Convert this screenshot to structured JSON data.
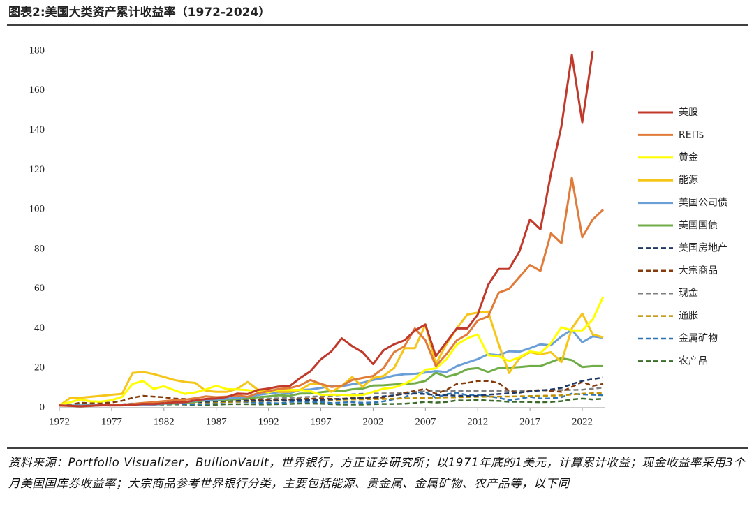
{
  "chart_data": {
    "type": "line",
    "title": "图表2:美国大类资产累计收益率（1972-2024）",
    "source": "资料来源：Portfolio Visualizer，BullionVault，世界银行，方正证券研究所；以1971年底的1美元，计算累计收益；现金收益率采用3个月美国国库券收益率；大宗商品参考世界银行分类，主要包括能源、贵金属、金属矿物、农产品等，以下同",
    "x": [
      1972,
      1973,
      1974,
      1975,
      1976,
      1977,
      1978,
      1979,
      1980,
      1981,
      1982,
      1983,
      1984,
      1985,
      1986,
      1987,
      1988,
      1989,
      1990,
      1991,
      1992,
      1993,
      1994,
      1995,
      1996,
      1997,
      1998,
      1999,
      2000,
      2001,
      2002,
      2003,
      2004,
      2005,
      2006,
      2007,
      2008,
      2009,
      2010,
      2011,
      2012,
      2013,
      2014,
      2015,
      2016,
      2017,
      2018,
      2019,
      2020,
      2021,
      2022,
      2023,
      2024
    ],
    "xlim": [
      1972,
      2024
    ],
    "xticks": [
      1972,
      1977,
      1982,
      1987,
      1992,
      1997,
      2002,
      2007,
      2012,
      2017,
      2022
    ],
    "ylim": [
      0,
      180
    ],
    "yticks": [
      0,
      20,
      40,
      60,
      80,
      100,
      120,
      140,
      160,
      180
    ],
    "legend": "right",
    "series": [
      {
        "name": "美股",
        "color": "#C0392B",
        "values": [
          1.2,
          1.0,
          0.75,
          1.0,
          1.25,
          1.15,
          1.2,
          1.45,
          1.9,
          1.8,
          2.2,
          2.7,
          2.8,
          3.7,
          4.4,
          4.6,
          5.4,
          7.1,
          6.9,
          9.0,
          9.7,
          10.7,
          10.8,
          14.9,
          18.3,
          24.4,
          28.4,
          35,
          31,
          28,
          22,
          29,
          32,
          34,
          39,
          42,
          26,
          33,
          40,
          40,
          47,
          62,
          70,
          70,
          79,
          95,
          90,
          118,
          142,
          178,
          144,
          180,
          null
        ]
      },
      {
        "name": "REITs",
        "color": "#E07B39",
        "values": [
          1.1,
          0.9,
          0.7,
          0.9,
          1.2,
          1.4,
          1.5,
          1.9,
          2.4,
          2.8,
          3.3,
          3.8,
          4.0,
          4.8,
          5.7,
          5.3,
          5.6,
          6.2,
          5.5,
          7.4,
          8.3,
          9.5,
          9.9,
          11.2,
          14.0,
          12.0,
          10.5,
          11.0,
          14,
          15,
          16,
          20,
          28,
          31,
          40,
          34,
          21,
          27,
          34,
          37,
          44,
          46,
          58,
          60,
          66,
          72,
          69,
          88,
          83,
          116,
          86,
          95,
          100
        ]
      },
      {
        "name": "黄金",
        "color": "#FFFF00",
        "values": [
          1.5,
          2.7,
          4.2,
          3.2,
          3.1,
          3.8,
          5.5,
          12,
          13.5,
          9.5,
          10.8,
          8.8,
          7.0,
          7.7,
          9.2,
          11.1,
          9.4,
          9.2,
          8.9,
          8.1,
          7.7,
          9.1,
          9.0,
          9.0,
          8.3,
          6.5,
          6.6,
          6.5,
          6.3,
          6.4,
          8.0,
          9.6,
          10.2,
          12,
          14.7,
          19.2,
          19.8,
          24.4,
          31.8,
          35,
          37,
          26.5,
          26,
          23.5,
          25.5,
          28.4,
          27.6,
          32.5,
          40.6,
          39,
          39,
          44.5,
          56
        ]
      },
      {
        "name": "能源",
        "color": "#F5C518",
        "values": [
          1,
          4.8,
          5,
          5.5,
          6,
          6.5,
          7,
          17.5,
          18,
          17,
          15.5,
          14,
          13,
          12.5,
          8.5,
          8,
          8,
          9.5,
          13,
          9,
          9,
          8,
          8,
          9,
          12,
          12,
          8,
          11,
          15.5,
          10.5,
          15,
          16,
          20,
          30,
          30,
          42,
          22,
          32,
          40,
          47,
          48,
          48.5,
          32,
          17.5,
          25,
          28,
          27,
          28,
          23,
          40,
          47.5,
          37,
          35.5
        ]
      },
      {
        "name": "美国公司债",
        "color": "#6A9FD8",
        "values": [
          1.05,
          1.1,
          1.1,
          1.2,
          1.4,
          1.4,
          1.4,
          1.4,
          1.5,
          1.5,
          2.1,
          2.3,
          2.7,
          3.4,
          4.0,
          4.2,
          4.5,
          5.0,
          5.5,
          6.4,
          7.2,
          7.8,
          7.3,
          8.9,
          9.2,
          10.0,
          11.0,
          10.8,
          11.8,
          12.6,
          14.0,
          14.9,
          16.2,
          16.9,
          17.1,
          17.7,
          18.5,
          18.0,
          21,
          22.8,
          24.5,
          27,
          26.5,
          28.5,
          28.3,
          30,
          32,
          31.5,
          36,
          39.3,
          33,
          36,
          35.3
        ]
      },
      {
        "name": "美国国债",
        "color": "#70AD47",
        "values": [
          1.05,
          1.1,
          1.15,
          1.25,
          1.4,
          1.4,
          1.4,
          1.4,
          1.4,
          1.5,
          2.0,
          2.1,
          2.4,
          3.0,
          3.7,
          3.6,
          3.9,
          4.4,
          4.7,
          5.3,
          5.7,
          6.3,
          6.0,
          7.1,
          7.2,
          7.8,
          8.4,
          8.3,
          9.3,
          9.7,
          11.2,
          11.3,
          11.7,
          12.0,
          12.3,
          13.5,
          17.7,
          15.6,
          16.9,
          19.4,
          20,
          18,
          20,
          20.2,
          20.5,
          21,
          21,
          23,
          25,
          24,
          20.5,
          21,
          21
        ]
      },
      {
        "name": "美国房地产",
        "color": "#1F3864",
        "dash": true,
        "values": [
          1.05,
          1.1,
          1.2,
          1.3,
          1.4,
          1.5,
          1.7,
          1.95,
          2.2,
          2.4,
          2.5,
          2.6,
          2.7,
          2.8,
          3.0,
          3.2,
          3.4,
          3.5,
          3.5,
          3.5,
          3.5,
          3.6,
          3.7,
          3.8,
          3.9,
          4.0,
          4.2,
          4.4,
          4.7,
          5.0,
          5.4,
          5.7,
          6.2,
          7.0,
          7.1,
          6.9,
          6.4,
          6.3,
          6.1,
          5.9,
          6.0,
          6.6,
          6.9,
          7.3,
          7.7,
          8.2,
          8.7,
          9.2,
          10.0,
          11.9,
          13.5,
          14.4,
          15.3
        ]
      },
      {
        "name": "大宗商品",
        "color": "#843C0C",
        "dash": true,
        "values": [
          1,
          1.5,
          2.5,
          2.3,
          2.4,
          2.6,
          3.5,
          5.0,
          6.0,
          5.6,
          5.3,
          4.6,
          4.4,
          4.2,
          3.9,
          4.1,
          4.1,
          4.2,
          4.4,
          4.0,
          3.9,
          4.1,
          4.1,
          4.4,
          4.5,
          4.8,
          4.5,
          4.5,
          4.9,
          4.8,
          4.9,
          5.2,
          6.2,
          7.5,
          8.5,
          9.5,
          7.0,
          9.0,
          12,
          12.5,
          13.5,
          13.5,
          12.5,
          8.5,
          7.5,
          8.5,
          9,
          8.5,
          8.0,
          10.5,
          13.0,
          11.0,
          12.0
        ]
      },
      {
        "name": "现金",
        "color": "#7F7F7F",
        "dash": true,
        "values": [
          1.04,
          1.11,
          1.2,
          1.27,
          1.33,
          1.4,
          1.5,
          1.66,
          1.86,
          2.14,
          2.37,
          2.58,
          2.83,
          3.04,
          3.22,
          3.4,
          3.63,
          3.94,
          4.25,
          4.48,
          4.63,
          4.77,
          4.98,
          5.26,
          5.53,
          5.82,
          6.11,
          6.39,
          6.77,
          7.03,
          7.15,
          7.23,
          7.33,
          7.56,
          7.92,
          8.29,
          8.4,
          8.41,
          8.42,
          8.43,
          8.44,
          8.44,
          8.45,
          8.45,
          8.48,
          8.56,
          8.73,
          8.92,
          8.96,
          8.96,
          9.1,
          9.6,
          10.1
        ]
      },
      {
        "name": "通胀",
        "color": "#BF9000",
        "dash": true,
        "values": [
          1.03,
          1.12,
          1.25,
          1.34,
          1.41,
          1.5,
          1.64,
          1.85,
          2.08,
          2.27,
          2.36,
          2.45,
          2.55,
          2.64,
          2.67,
          2.79,
          2.91,
          3.04,
          3.22,
          3.32,
          3.42,
          3.51,
          3.6,
          3.69,
          3.81,
          3.88,
          3.94,
          4.04,
          4.17,
          4.24,
          4.34,
          4.42,
          4.56,
          4.71,
          4.83,
          5.03,
          5.03,
          5.17,
          5.25,
          5.4,
          5.49,
          5.57,
          5.61,
          5.65,
          5.77,
          5.89,
          6.0,
          6.14,
          6.23,
          6.67,
          7.07,
          7.34,
          7.55
        ]
      },
      {
        "name": "金属矿物",
        "color": "#2E75B6",
        "dash": true,
        "values": [
          1,
          1.3,
          1.5,
          1.3,
          1.4,
          1.4,
          1.6,
          2.1,
          2.3,
          1.9,
          1.8,
          2.0,
          1.8,
          1.7,
          1.8,
          2.3,
          2.9,
          3.0,
          2.9,
          2.5,
          2.4,
          2.2,
          2.9,
          3.1,
          2.9,
          2.9,
          2.4,
          2.6,
          2.8,
          2.5,
          2.6,
          3.2,
          4.3,
          5.2,
          7.7,
          8.0,
          5.0,
          6.8,
          7.6,
          6.3,
          6.5,
          5.8,
          5.0,
          3.8,
          4.5,
          5.5,
          4.7,
          4.7,
          5.3,
          7.1,
          6.7,
          6.5,
          6.3
        ]
      },
      {
        "name": "农产品",
        "color": "#3A6B2A",
        "dash": true,
        "values": [
          1,
          1.4,
          1.7,
          1.5,
          1.4,
          1.4,
          1.5,
          1.6,
          1.8,
          1.7,
          1.6,
          1.7,
          1.6,
          1.4,
          1.5,
          1.5,
          1.8,
          1.8,
          1.8,
          1.7,
          1.7,
          1.8,
          1.9,
          2.1,
          2.1,
          2.0,
          1.8,
          1.6,
          1.6,
          1.6,
          1.8,
          1.9,
          1.9,
          2.0,
          2.4,
          3.0,
          2.6,
          2.9,
          3.7,
          3.6,
          4.0,
          3.6,
          3.4,
          3.0,
          3.0,
          2.9,
          2.8,
          2.9,
          3.3,
          4.2,
          4.6,
          4.2,
          4.5
        ]
      }
    ]
  }
}
